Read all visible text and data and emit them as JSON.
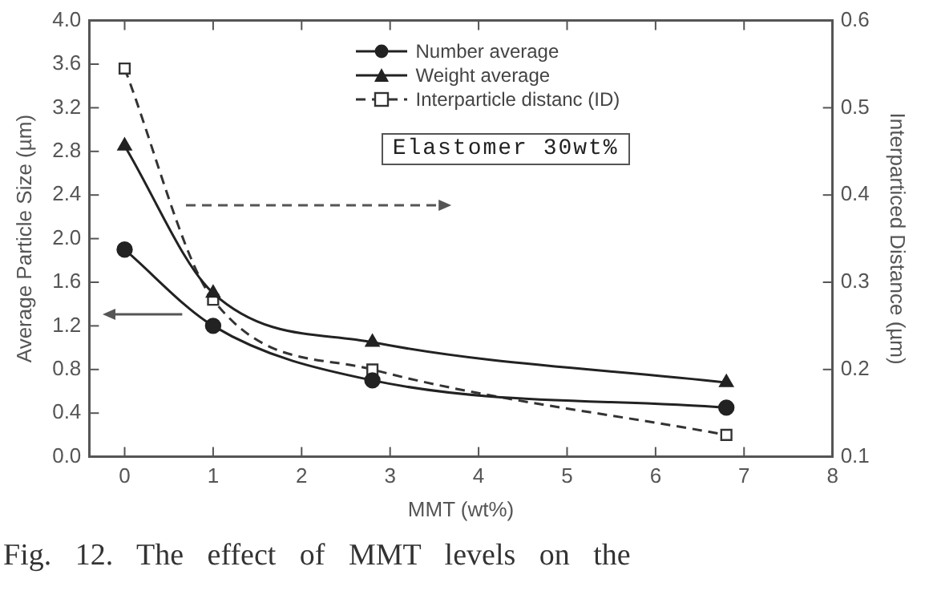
{
  "chart_data": {
    "type": "line",
    "xlabel": "MMT (wt%)",
    "ylabel": "Average Particle Size (µm)",
    "y2label": "Interparticed Distance (µm)",
    "x": [
      0,
      1,
      2.8,
      6.8
    ],
    "series": [
      {
        "name": "Number average",
        "color": "#222222",
        "marker": "circle",
        "line_style": "solid",
        "values": [
          1.9,
          1.2,
          0.7,
          0.45
        ]
      },
      {
        "name": "Weight average",
        "color": "#222222",
        "marker": "triangle",
        "line_style": "solid",
        "values": [
          2.85,
          1.5,
          1.05,
          0.68
        ]
      },
      {
        "name": "Interparticle distanc (ID)",
        "color": "#333333",
        "marker": "square",
        "line_style": "dashed",
        "axis": "y2",
        "values": [
          0.545,
          0.28,
          0.2,
          0.125
        ]
      }
    ],
    "xlim": [
      -0.4,
      8
    ],
    "xticks": [
      0,
      1,
      2,
      3,
      4,
      5,
      6,
      7,
      8
    ],
    "ylim": [
      0,
      4
    ],
    "yticks": [
      {
        "value": 0,
        "label": "0.0"
      },
      0.4,
      0.8,
      1.2,
      1.6,
      {
        "value": 2,
        "label": "2.0"
      },
      2.4,
      2.8,
      3.2,
      3.6,
      {
        "value": 4,
        "label": "4.0"
      }
    ],
    "y2lim": [
      0.1,
      0.6
    ],
    "y2ticks": [
      0.1,
      0.2,
      0.3,
      0.4,
      0.5,
      0.6
    ],
    "grid": false,
    "legend": "top right",
    "annotations": [
      "Elastomer 30wt%",
      "Fig. 12. The effect of MMT levels on the"
    ]
  }
}
